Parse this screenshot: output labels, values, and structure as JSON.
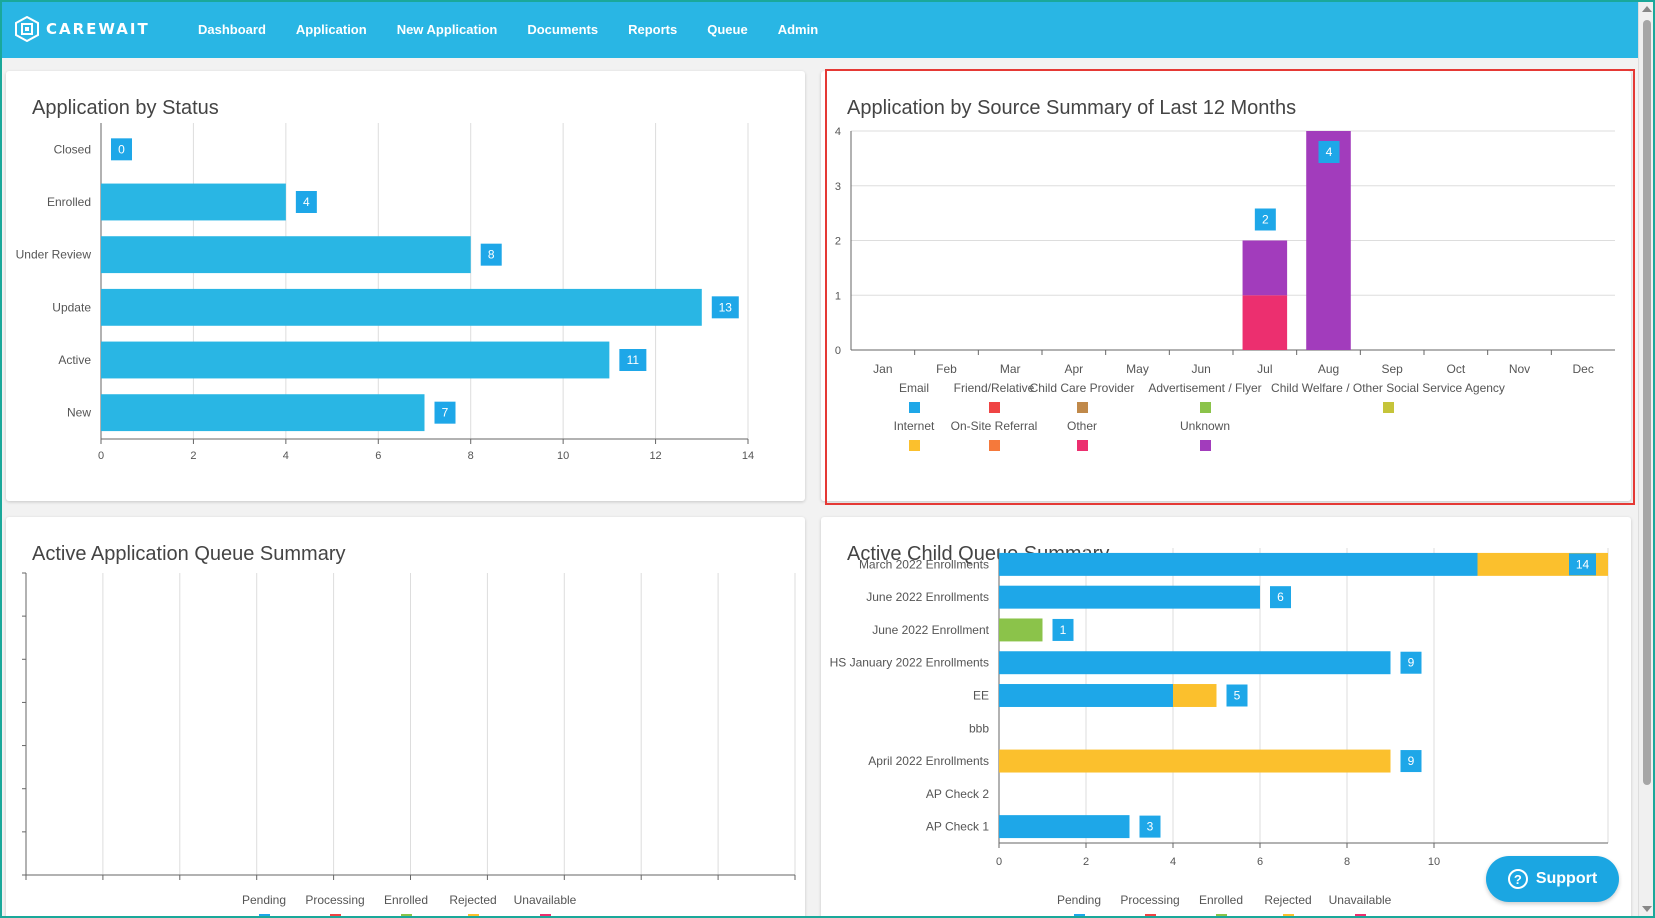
{
  "brand": {
    "name": "CAREWAIT"
  },
  "nav": {
    "items": [
      "Dashboard",
      "Application",
      "New Application",
      "Documents",
      "Reports",
      "Queue",
      "Admin"
    ]
  },
  "support": {
    "label": "Support"
  },
  "colors": {
    "nav": "#29b6e4",
    "bar": "#29b6e4",
    "highlight": "#e53935"
  },
  "chart_data": [
    {
      "type": "bar",
      "orientation": "horizontal",
      "title": "Application by Status",
      "categories": [
        "Closed",
        "Enrolled",
        "Under Review",
        "Update",
        "Active",
        "New"
      ],
      "values": [
        0,
        4,
        8,
        13,
        11,
        7
      ],
      "xlim": [
        0,
        14
      ],
      "xticks": [
        0,
        2,
        4,
        6,
        8,
        10,
        12,
        14
      ],
      "color": "#29b6e4"
    },
    {
      "type": "bar",
      "stacked": true,
      "title": "Application by Source Summary of Last 12 Months",
      "categories": [
        "Jan",
        "Feb",
        "Mar",
        "Apr",
        "May",
        "Jun",
        "Jul",
        "Aug",
        "Sep",
        "Oct",
        "Nov",
        "Dec"
      ],
      "ylim": [
        0,
        4
      ],
      "yticks": [
        0,
        1,
        2,
        3,
        4
      ],
      "series": [
        {
          "name": "Email",
          "color": "#1ea7e8",
          "values": [
            0,
            0,
            0,
            0,
            0,
            0,
            0,
            0,
            0,
            0,
            0,
            0
          ]
        },
        {
          "name": "Friend/Relative",
          "color": "#ef4444",
          "values": [
            0,
            0,
            0,
            0,
            0,
            0,
            0,
            0,
            0,
            0,
            0,
            0
          ]
        },
        {
          "name": "Child Care Provider",
          "color": "#c0894a",
          "values": [
            0,
            0,
            0,
            0,
            0,
            0,
            0,
            0,
            0,
            0,
            0,
            0
          ]
        },
        {
          "name": "Advertisement / Flyer",
          "color": "#8bc34a",
          "values": [
            0,
            0,
            0,
            0,
            0,
            0,
            0,
            0,
            0,
            0,
            0,
            0
          ]
        },
        {
          "name": "Child Welfare / Other Social Service Agency",
          "color": "#c5c43a",
          "values": [
            0,
            0,
            0,
            0,
            0,
            0,
            0,
            0,
            0,
            0,
            0,
            0
          ]
        },
        {
          "name": "Internet",
          "color": "#fbc02d",
          "values": [
            0,
            0,
            0,
            0,
            0,
            0,
            0,
            0,
            0,
            0,
            0,
            0
          ]
        },
        {
          "name": "On-Site Referral",
          "color": "#f5793b",
          "values": [
            0,
            0,
            0,
            0,
            0,
            0,
            0,
            0,
            0,
            0,
            0,
            0
          ]
        },
        {
          "name": "Other",
          "color": "#ec2f6f",
          "values": [
            0,
            0,
            0,
            0,
            0,
            0,
            1,
            0,
            0,
            0,
            0,
            0
          ]
        },
        {
          "name": "Unknown",
          "color": "#a23cbc",
          "values": [
            0,
            0,
            0,
            0,
            0,
            0,
            1,
            4,
            0,
            0,
            0,
            0
          ]
        }
      ],
      "totals": [
        null,
        null,
        null,
        null,
        null,
        null,
        2,
        4,
        null,
        null,
        null,
        null
      ]
    },
    {
      "type": "bar",
      "orientation": "horizontal",
      "title": "Active Application Queue Summary",
      "categories": [],
      "series": [
        {
          "name": "Pending",
          "color": "#1ea7e8",
          "values": []
        },
        {
          "name": "Processing",
          "color": "#ef4444",
          "values": []
        },
        {
          "name": "Enrolled",
          "color": "#8bc34a",
          "values": []
        },
        {
          "name": "Rejected",
          "color": "#fbc02d",
          "values": []
        },
        {
          "name": "Unavailable",
          "color": "#ec2f6f",
          "values": []
        }
      ]
    },
    {
      "type": "bar",
      "orientation": "horizontal",
      "stacked": true,
      "title": "Active Child Queue Summary",
      "categories": [
        "March 2022 Enrollments",
        "June 2022 Enrollments",
        "June 2022 Enrollment",
        "HS January 2022 Enrollments",
        "EE",
        "bbb",
        "April 2022 Enrollments",
        "AP Check 2",
        "AP Check 1"
      ],
      "xlim": [
        0,
        14
      ],
      "xticks": [
        0,
        2,
        4,
        6,
        8,
        10
      ],
      "series": [
        {
          "name": "Pending",
          "color": "#1ea7e8",
          "values": [
            11,
            6,
            0,
            9,
            4,
            0,
            0,
            0,
            3
          ]
        },
        {
          "name": "Processing",
          "color": "#ef4444",
          "values": [
            0,
            0,
            0,
            0,
            0,
            0,
            0,
            0,
            0
          ]
        },
        {
          "name": "Enrolled",
          "color": "#8bc34a",
          "values": [
            0,
            0,
            1,
            0,
            0,
            0,
            0,
            0,
            0
          ]
        },
        {
          "name": "Rejected",
          "color": "#fbc02d",
          "values": [
            3,
            0,
            0,
            0,
            1,
            0,
            9,
            0,
            0
          ]
        },
        {
          "name": "Unavailable",
          "color": "#ec2f6f",
          "values": [
            0,
            0,
            0,
            0,
            0,
            0,
            0,
            0,
            0
          ]
        }
      ],
      "totals": [
        14,
        6,
        1,
        9,
        5,
        null,
        9,
        null,
        3
      ]
    }
  ]
}
